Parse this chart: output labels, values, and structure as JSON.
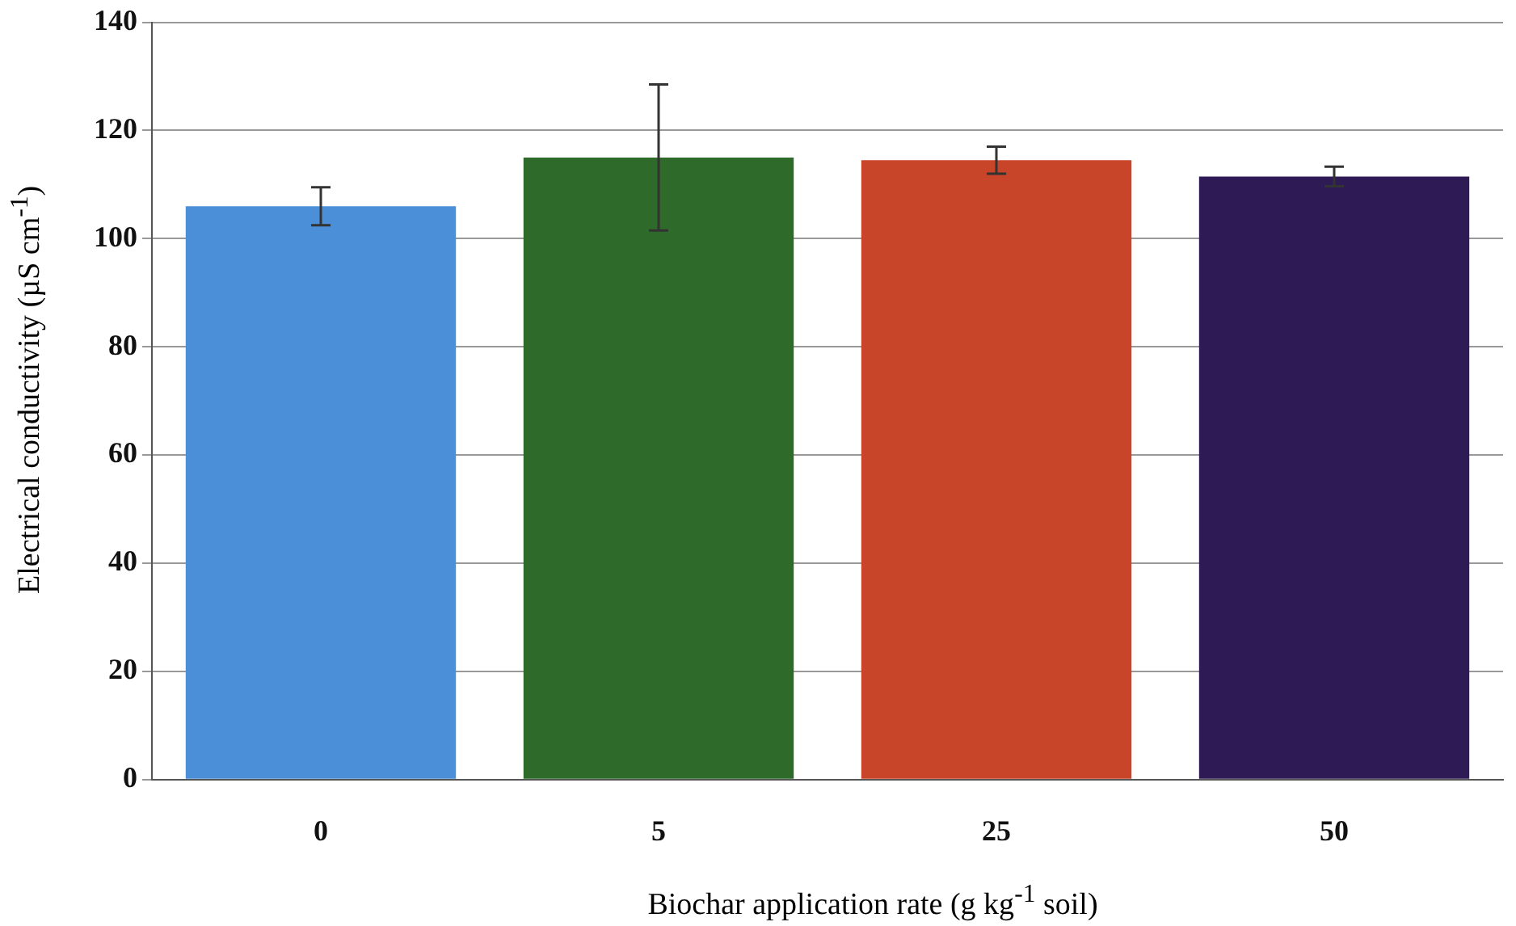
{
  "chart_data": {
    "type": "bar",
    "xlabel": "Biochar application rate (g kg$^{-1}$ soil)",
    "ylabel": "Electrical conductivity (µS cm$^{-1}$)",
    "categories": [
      "0",
      "5",
      "25",
      "50"
    ],
    "values": [
      106,
      115,
      114.5,
      111.5
    ],
    "colors": [
      "#4a8fd8",
      "#2e6a2a",
      "#c8452a",
      "#2e1a55"
    ],
    "errors": [
      3.5,
      13.5,
      2.5,
      1.8
    ],
    "ylim": [
      0,
      140
    ],
    "yticks": [
      0,
      20,
      40,
      60,
      80,
      100,
      120,
      140
    ],
    "grid": "y",
    "legend": false
  }
}
